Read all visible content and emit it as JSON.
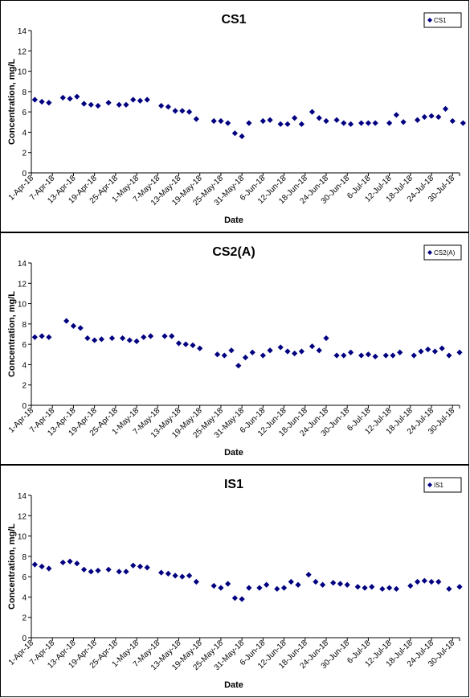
{
  "chart_data": [
    {
      "type": "scatter",
      "title": "CS1",
      "xlabel": "Date",
      "ylabel": "Concentration, mg/L",
      "ylim": [
        0,
        14
      ],
      "yticks": [
        0,
        2,
        4,
        6,
        8,
        10,
        12,
        14
      ],
      "xlim": [
        "2018-04-01",
        "2018-08-01"
      ],
      "xtick_labels": [
        "1-Apr-18",
        "7-Apr-18",
        "13-Apr-18",
        "19-Apr-18",
        "25-Apr-18",
        "1-May-18",
        "7-May-18",
        "13-May-18",
        "19-May-18",
        "25-May-18",
        "31-May-18",
        "6-Jun-18",
        "12-Jun-18",
        "18-Jun-18",
        "24-Jun-18",
        "30-Jun-18",
        "6-Jul-18",
        "12-Jul-18",
        "18-Jul-18",
        "24-Jul-18",
        "30-Jul-18"
      ],
      "grid": false,
      "legend_position": "top-right",
      "series": [
        {
          "name": "CS1",
          "color": "#000080",
          "points": [
            [
              "2018-04-02",
              7.2
            ],
            [
              "2018-04-04",
              7.0
            ],
            [
              "2018-04-06",
              6.9
            ],
            [
              "2018-04-10",
              7.4
            ],
            [
              "2018-04-12",
              7.3
            ],
            [
              "2018-04-14",
              7.5
            ],
            [
              "2018-04-16",
              6.8
            ],
            [
              "2018-04-18",
              6.7
            ],
            [
              "2018-04-20",
              6.6
            ],
            [
              "2018-04-23",
              6.9
            ],
            [
              "2018-04-26",
              6.7
            ],
            [
              "2018-04-28",
              6.7
            ],
            [
              "2018-04-30",
              7.2
            ],
            [
              "2018-05-02",
              7.1
            ],
            [
              "2018-05-04",
              7.2
            ],
            [
              "2018-05-08",
              6.6
            ],
            [
              "2018-05-10",
              6.5
            ],
            [
              "2018-05-12",
              6.1
            ],
            [
              "2018-05-14",
              6.1
            ],
            [
              "2018-05-16",
              6.0
            ],
            [
              "2018-05-18",
              5.3
            ],
            [
              "2018-05-23",
              5.1
            ],
            [
              "2018-05-25",
              5.1
            ],
            [
              "2018-05-27",
              4.9
            ],
            [
              "2018-05-29",
              3.9
            ],
            [
              "2018-05-31",
              3.6
            ],
            [
              "2018-06-02",
              4.9
            ],
            [
              "2018-06-06",
              5.1
            ],
            [
              "2018-06-08",
              5.2
            ],
            [
              "2018-06-11",
              4.8
            ],
            [
              "2018-06-13",
              4.8
            ],
            [
              "2018-06-15",
              5.4
            ],
            [
              "2018-06-17",
              4.8
            ],
            [
              "2018-06-20",
              6.0
            ],
            [
              "2018-06-22",
              5.4
            ],
            [
              "2018-06-24",
              5.1
            ],
            [
              "2018-06-27",
              5.2
            ],
            [
              "2018-06-29",
              4.9
            ],
            [
              "2018-07-01",
              4.8
            ],
            [
              "2018-07-04",
              4.9
            ],
            [
              "2018-07-06",
              4.9
            ],
            [
              "2018-07-08",
              4.9
            ],
            [
              "2018-07-12",
              4.9
            ],
            [
              "2018-07-14",
              5.7
            ],
            [
              "2018-07-16",
              5.0
            ],
            [
              "2018-07-20",
              5.2
            ],
            [
              "2018-07-22",
              5.5
            ],
            [
              "2018-07-24",
              5.6
            ],
            [
              "2018-07-26",
              5.5
            ],
            [
              "2018-07-28",
              6.3
            ],
            [
              "2018-07-30",
              5.1
            ],
            [
              "2018-08-02",
              4.9
            ]
          ]
        }
      ]
    },
    {
      "type": "scatter",
      "title": "CS2(A)",
      "xlabel": "Date",
      "ylabel": "Concentration, mg/L",
      "ylim": [
        0,
        14
      ],
      "yticks": [
        0,
        2,
        4,
        6,
        8,
        10,
        12,
        14
      ],
      "xlim": [
        "2018-04-01",
        "2018-08-01"
      ],
      "xtick_labels": [
        "1-Apr-18",
        "7-Apr-18",
        "13-Apr-18",
        "19-Apr-18",
        "25-Apr-18",
        "1-May-18",
        "7-May-18",
        "13-May-18",
        "19-May-18",
        "25-May-18",
        "31-May-18",
        "6-Jun-18",
        "12-Jun-18",
        "18-Jun-18",
        "24-Jun-18",
        "30-Jun-18",
        "6-Jul-18",
        "12-Jul-18",
        "18-Jul-18",
        "24-Jul-18",
        "30-Jul-18"
      ],
      "grid": false,
      "legend_position": "top-right",
      "series": [
        {
          "name": "CS2(A)",
          "color": "#000080",
          "points": [
            [
              "2018-04-02",
              6.7
            ],
            [
              "2018-04-04",
              6.8
            ],
            [
              "2018-04-06",
              6.7
            ],
            [
              "2018-04-11",
              8.3
            ],
            [
              "2018-04-13",
              7.8
            ],
            [
              "2018-04-15",
              7.6
            ],
            [
              "2018-04-17",
              6.6
            ],
            [
              "2018-04-19",
              6.4
            ],
            [
              "2018-04-21",
              6.5
            ],
            [
              "2018-04-24",
              6.6
            ],
            [
              "2018-04-27",
              6.6
            ],
            [
              "2018-04-29",
              6.4
            ],
            [
              "2018-05-01",
              6.3
            ],
            [
              "2018-05-03",
              6.7
            ],
            [
              "2018-05-05",
              6.8
            ],
            [
              "2018-05-09",
              6.8
            ],
            [
              "2018-05-11",
              6.8
            ],
            [
              "2018-05-13",
              6.1
            ],
            [
              "2018-05-15",
              6.0
            ],
            [
              "2018-05-17",
              5.9
            ],
            [
              "2018-05-19",
              5.6
            ],
            [
              "2018-05-24",
              5.0
            ],
            [
              "2018-05-26",
              4.9
            ],
            [
              "2018-05-28",
              5.4
            ],
            [
              "2018-05-30",
              3.9
            ],
            [
              "2018-06-01",
              4.7
            ],
            [
              "2018-06-03",
              5.2
            ],
            [
              "2018-06-06",
              4.9
            ],
            [
              "2018-06-08",
              5.4
            ],
            [
              "2018-06-11",
              5.7
            ],
            [
              "2018-06-13",
              5.3
            ],
            [
              "2018-06-15",
              5.1
            ],
            [
              "2018-06-17",
              5.3
            ],
            [
              "2018-06-20",
              5.8
            ],
            [
              "2018-06-22",
              5.4
            ],
            [
              "2018-06-24",
              6.6
            ],
            [
              "2018-06-27",
              4.9
            ],
            [
              "2018-06-29",
              4.9
            ],
            [
              "2018-07-01",
              5.2
            ],
            [
              "2018-07-04",
              4.9
            ],
            [
              "2018-07-06",
              5.0
            ],
            [
              "2018-07-08",
              4.8
            ],
            [
              "2018-07-11",
              4.9
            ],
            [
              "2018-07-13",
              4.9
            ],
            [
              "2018-07-15",
              5.2
            ],
            [
              "2018-07-19",
              4.9
            ],
            [
              "2018-07-21",
              5.3
            ],
            [
              "2018-07-23",
              5.5
            ],
            [
              "2018-07-25",
              5.3
            ],
            [
              "2018-07-27",
              5.6
            ],
            [
              "2018-07-29",
              4.9
            ],
            [
              "2018-08-01",
              5.2
            ]
          ]
        }
      ]
    },
    {
      "type": "scatter",
      "title": "IS1",
      "xlabel": "Date",
      "ylabel": "Concentration, mg/L",
      "ylim": [
        0,
        14
      ],
      "yticks": [
        0,
        2,
        4,
        6,
        8,
        10,
        12,
        14
      ],
      "xlim": [
        "2018-04-01",
        "2018-08-01"
      ],
      "xtick_labels": [
        "1-Apr-18",
        "7-Apr-18",
        "13-Apr-18",
        "19-Apr-18",
        "25-Apr-18",
        "1-May-18",
        "7-May-18",
        "13-May-18",
        "19-May-18",
        "25-May-18",
        "31-May-18",
        "6-Jun-18",
        "12-Jun-18",
        "18-Jun-18",
        "24-Jun-18",
        "30-Jun-18",
        "6-Jul-18",
        "12-Jul-18",
        "18-Jul-18",
        "24-Jul-18",
        "30-Jul-18"
      ],
      "grid": false,
      "legend_position": "top-right",
      "series": [
        {
          "name": "IS1",
          "color": "#000080",
          "points": [
            [
              "2018-04-02",
              7.2
            ],
            [
              "2018-04-04",
              7.0
            ],
            [
              "2018-04-06",
              6.8
            ],
            [
              "2018-04-10",
              7.4
            ],
            [
              "2018-04-12",
              7.5
            ],
            [
              "2018-04-14",
              7.3
            ],
            [
              "2018-04-16",
              6.7
            ],
            [
              "2018-04-18",
              6.5
            ],
            [
              "2018-04-20",
              6.6
            ],
            [
              "2018-04-23",
              6.7
            ],
            [
              "2018-04-26",
              6.5
            ],
            [
              "2018-04-28",
              6.5
            ],
            [
              "2018-04-30",
              7.1
            ],
            [
              "2018-05-02",
              7.0
            ],
            [
              "2018-05-04",
              6.9
            ],
            [
              "2018-05-08",
              6.4
            ],
            [
              "2018-05-10",
              6.3
            ],
            [
              "2018-05-12",
              6.1
            ],
            [
              "2018-05-14",
              6.0
            ],
            [
              "2018-05-16",
              6.1
            ],
            [
              "2018-05-18",
              5.5
            ],
            [
              "2018-05-23",
              5.1
            ],
            [
              "2018-05-25",
              4.9
            ],
            [
              "2018-05-27",
              5.3
            ],
            [
              "2018-05-29",
              3.9
            ],
            [
              "2018-05-31",
              3.8
            ],
            [
              "2018-06-02",
              4.9
            ],
            [
              "2018-06-05",
              4.9
            ],
            [
              "2018-06-07",
              5.2
            ],
            [
              "2018-06-10",
              4.8
            ],
            [
              "2018-06-12",
              4.9
            ],
            [
              "2018-06-14",
              5.5
            ],
            [
              "2018-06-16",
              5.2
            ],
            [
              "2018-06-19",
              6.2
            ],
            [
              "2018-06-21",
              5.5
            ],
            [
              "2018-06-23",
              5.2
            ],
            [
              "2018-06-26",
              5.4
            ],
            [
              "2018-06-28",
              5.3
            ],
            [
              "2018-06-30",
              5.2
            ],
            [
              "2018-07-03",
              5.0
            ],
            [
              "2018-07-05",
              4.9
            ],
            [
              "2018-07-07",
              5.0
            ],
            [
              "2018-07-10",
              4.8
            ],
            [
              "2018-07-12",
              4.9
            ],
            [
              "2018-07-14",
              4.8
            ],
            [
              "2018-07-18",
              5.1
            ],
            [
              "2018-07-20",
              5.5
            ],
            [
              "2018-07-22",
              5.6
            ],
            [
              "2018-07-24",
              5.5
            ],
            [
              "2018-07-26",
              5.5
            ],
            [
              "2018-07-29",
              4.8
            ],
            [
              "2018-08-01",
              5.0
            ]
          ]
        }
      ]
    }
  ]
}
